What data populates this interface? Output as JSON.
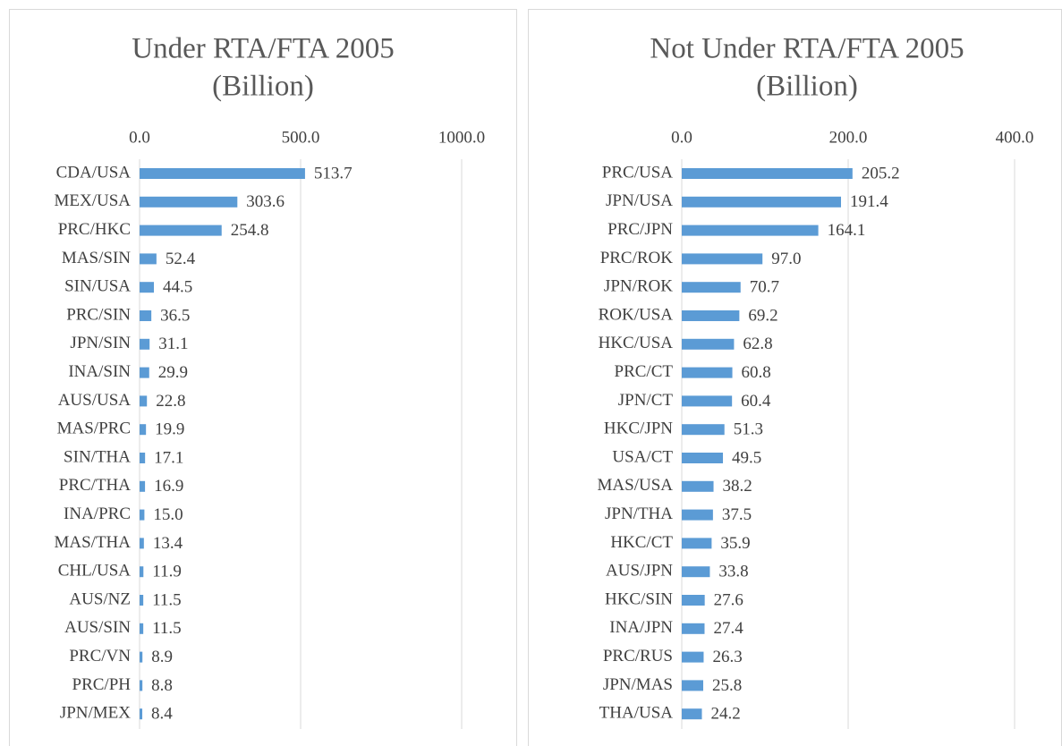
{
  "chart_data": [
    {
      "type": "bar",
      "orientation": "horizontal",
      "title": "Under RTA/FTA 2005",
      "subtitle": "(Billion)",
      "color": "#5b9bd5",
      "grid": true,
      "categories": [
        "CDA/USA",
        "MEX/USA",
        "PRC/HKC",
        "MAS/SIN",
        "SIN/USA",
        "PRC/SIN",
        "JPN/SIN",
        "INA/SIN",
        "AUS/USA",
        "MAS/PRC",
        "SIN/THA",
        "PRC/THA",
        "INA/PRC",
        "MAS/THA",
        "CHL/USA",
        "AUS/NZ",
        "AUS/SIN",
        "PRC/VN",
        "PRC/PH",
        "JPN/MEX"
      ],
      "values": [
        513.7,
        303.6,
        254.8,
        52.4,
        44.5,
        36.5,
        31.1,
        29.9,
        22.8,
        19.9,
        17.1,
        16.9,
        15.0,
        13.4,
        11.9,
        11.5,
        11.5,
        8.9,
        8.8,
        8.4
      ],
      "value_labels": [
        "513.7",
        "303.6",
        "254.8",
        "52.4",
        "44.5",
        "36.5",
        "31.1",
        "29.9",
        "22.8",
        "19.9",
        "17.1",
        "16.9",
        "15.0",
        "13.4",
        "11.9",
        "11.5",
        "11.5",
        "8.9",
        "8.8",
        "8.4"
      ],
      "xlim": [
        0,
        1000
      ],
      "xticks": [
        {
          "value": 0,
          "label": "0.0"
        },
        {
          "value": 500,
          "label": "500.0"
        },
        {
          "value": 1000,
          "label": "1000.0"
        }
      ]
    },
    {
      "type": "bar",
      "orientation": "horizontal",
      "title": "Not Under RTA/FTA 2005",
      "subtitle": "(Billion)",
      "color": "#5b9bd5",
      "grid": true,
      "categories": [
        "PRC/USA",
        "JPN/USA",
        "PRC/JPN",
        "PRC/ROK",
        "JPN/ROK",
        "ROK/USA",
        "HKC/USA",
        "PRC/CT",
        "JPN/CT",
        "HKC/JPN",
        "USA/CT",
        "MAS/USA",
        "JPN/THA",
        "HKC/CT",
        "AUS/JPN",
        "HKC/SIN",
        "INA/JPN",
        "PRC/RUS",
        "JPN/MAS",
        "THA/USA"
      ],
      "values": [
        205.2,
        191.4,
        164.1,
        97.0,
        70.7,
        69.2,
        62.8,
        60.8,
        60.4,
        51.3,
        49.5,
        38.2,
        37.5,
        35.9,
        33.8,
        27.6,
        27.4,
        26.3,
        25.8,
        24.2
      ],
      "value_labels": [
        "205.2",
        "191.4",
        "164.1",
        "97.0",
        "70.7",
        "69.2",
        "62.8",
        "60.8",
        "60.4",
        "51.3",
        "49.5",
        "38.2",
        "37.5",
        "35.9",
        "33.8",
        "27.6",
        "27.4",
        "26.3",
        "25.8",
        "24.2"
      ],
      "xlim": [
        0,
        400
      ],
      "xticks": [
        {
          "value": 0,
          "label": "0.0"
        },
        {
          "value": 200,
          "label": "200.0"
        },
        {
          "value": 400,
          "label": "400.0"
        }
      ]
    }
  ]
}
